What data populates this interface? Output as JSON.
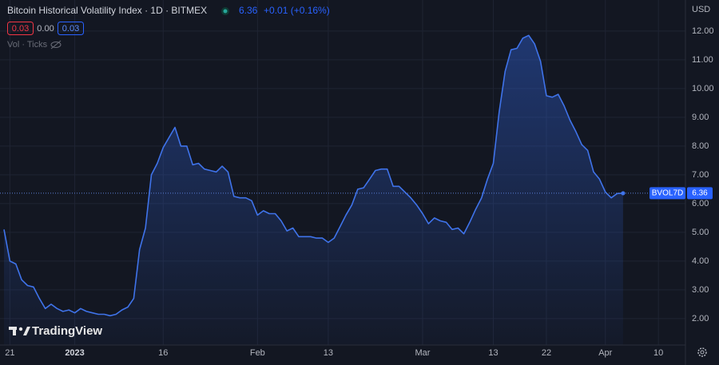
{
  "header": {
    "title": "Bitcoin Historical Volatility Index · 1D · BITMEX",
    "change": "+0.01 (+0.16%)",
    "indicator_values": [
      "0.03",
      "0.00",
      "0.03"
    ],
    "volume_label": "Vol · Ticks",
    "currency": "USD",
    "symbol_tag": "BVOL7D",
    "watermark": "TradingView"
  },
  "chart_data": {
    "type": "line",
    "color": "#3f73ea",
    "grid": true,
    "categories": [
      null,
      "21",
      null,
      null,
      null,
      null,
      null,
      null,
      null,
      null,
      null,
      null,
      "2023",
      null,
      null,
      null,
      null,
      null,
      null,
      null,
      null,
      null,
      null,
      null,
      null,
      null,
      null,
      "16",
      null,
      null,
      null,
      null,
      null,
      null,
      null,
      null,
      null,
      null,
      null,
      null,
      null,
      null,
      null,
      "Feb",
      null,
      null,
      null,
      null,
      null,
      null,
      null,
      null,
      null,
      null,
      null,
      "13",
      null,
      null,
      null,
      null,
      null,
      null,
      null,
      null,
      null,
      null,
      null,
      null,
      null,
      null,
      null,
      "Mar",
      null,
      null,
      null,
      null,
      null,
      null,
      null,
      null,
      null,
      null,
      null,
      "13",
      null,
      null,
      null,
      null,
      null,
      null,
      null,
      null,
      "22",
      null,
      null,
      null,
      null,
      null,
      null,
      null,
      null,
      null,
      "Apr",
      null,
      null,
      null,
      null,
      null,
      null,
      null,
      null,
      "10"
    ],
    "values": [
      5.1,
      4.0,
      3.9,
      3.35,
      3.15,
      3.1,
      2.7,
      2.35,
      2.5,
      2.35,
      2.25,
      2.3,
      2.2,
      2.35,
      2.25,
      2.2,
      2.15,
      2.15,
      2.1,
      2.15,
      2.3,
      2.4,
      2.7,
      4.4,
      5.15,
      7.0,
      7.4,
      7.95,
      8.3,
      8.65,
      8.0,
      8.0,
      7.35,
      7.4,
      7.2,
      7.15,
      7.1,
      7.3,
      7.1,
      6.25,
      6.2,
      6.2,
      6.1,
      5.6,
      5.75,
      5.65,
      5.65,
      5.4,
      5.05,
      5.15,
      4.85,
      4.85,
      4.85,
      4.8,
      4.8,
      4.65,
      4.8,
      5.2,
      5.6,
      5.95,
      6.5,
      6.55,
      6.85,
      7.15,
      7.2,
      7.2,
      6.6,
      6.6,
      6.4,
      6.2,
      5.95,
      5.65,
      5.3,
      5.5,
      5.4,
      5.35,
      5.1,
      5.15,
      4.95,
      5.35,
      5.8,
      6.2,
      6.85,
      7.4,
      9.2,
      10.6,
      11.35,
      11.4,
      11.75,
      11.85,
      11.55,
      10.95,
      9.75,
      9.7,
      9.8,
      9.4,
      8.9,
      8.5,
      8.05,
      7.85,
      7.1,
      6.85,
      6.4,
      6.2,
      6.35,
      6.36,
      null,
      null,
      null,
      null,
      null,
      null
    ],
    "ylim": [
      1.08,
      13.08
    ],
    "yticks": [
      {
        "value": 2,
        "label": "2.00"
      },
      {
        "value": 3,
        "label": "3.00"
      },
      {
        "value": 4,
        "label": "4.00"
      },
      {
        "value": 5,
        "label": "5.00"
      },
      {
        "value": 6,
        "label": "6.00"
      },
      {
        "value": 7,
        "label": "7.00"
      },
      {
        "value": 8,
        "label": "8.00"
      },
      {
        "value": 9,
        "label": "9.00"
      },
      {
        "value": 10,
        "label": "10.00"
      },
      {
        "value": 11,
        "label": "11.00"
      },
      {
        "value": 12,
        "label": "12.00"
      }
    ]
  }
}
